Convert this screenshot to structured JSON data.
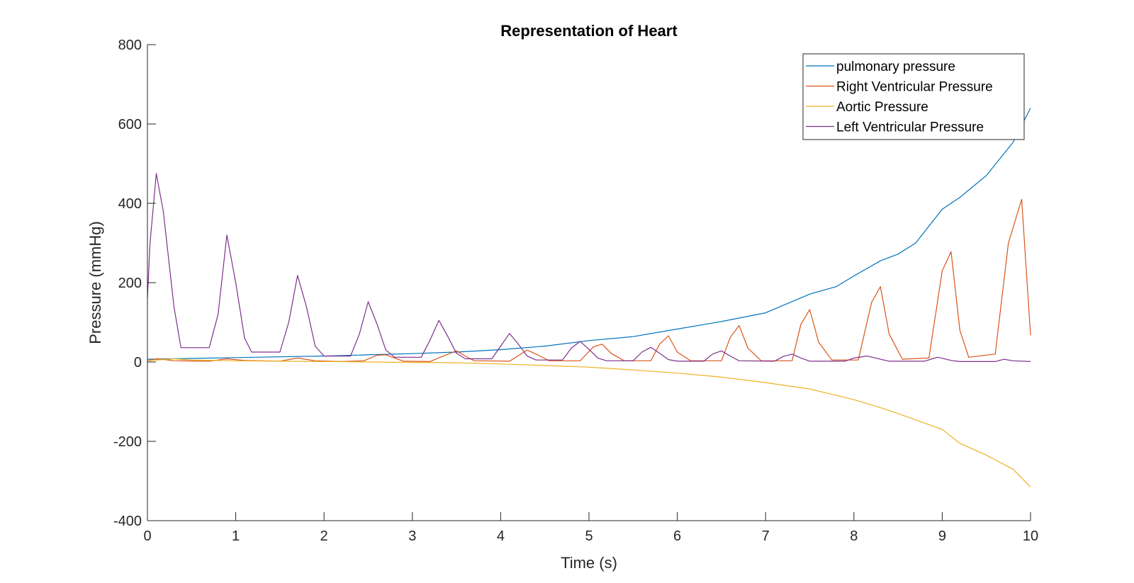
{
  "chart_data": {
    "type": "line",
    "title": "Representation of Heart",
    "xlabel": "Time (s)",
    "ylabel": "Pressure (mmHg)",
    "xlim": [
      0,
      10
    ],
    "ylim": [
      -400,
      800
    ],
    "xticks": [
      "0",
      "1",
      "2",
      "3",
      "4",
      "5",
      "6",
      "7",
      "8",
      "9",
      "10"
    ],
    "yticks": [
      "-400",
      "-200",
      "0",
      "200",
      "400",
      "600",
      "800"
    ],
    "grid": false,
    "legend_position": "top-right",
    "series": [
      {
        "name": "pulmonary pressure",
        "color": "#0072BD",
        "points": [
          [
            0,
            7
          ],
          [
            0.5,
            9
          ],
          [
            1,
            11
          ],
          [
            1.5,
            13
          ],
          [
            2,
            15
          ],
          [
            2.5,
            18
          ],
          [
            3,
            21
          ],
          [
            3.5,
            25
          ],
          [
            4,
            31
          ],
          [
            4.5,
            40
          ],
          [
            5,
            54
          ],
          [
            5.5,
            64
          ],
          [
            6,
            83
          ],
          [
            6.5,
            102
          ],
          [
            7,
            124
          ],
          [
            7.5,
            171
          ],
          [
            7.8,
            190
          ],
          [
            8,
            217
          ],
          [
            8.3,
            255
          ],
          [
            8.5,
            272
          ],
          [
            8.7,
            300
          ],
          [
            9,
            385
          ],
          [
            9.2,
            415
          ],
          [
            9.5,
            470
          ],
          [
            9.8,
            553
          ],
          [
            10,
            640
          ]
        ]
      },
      {
        "name": "Right Ventricular Pressure",
        "color": "#D95319",
        "points": [
          [
            0,
            3
          ],
          [
            0.1,
            8
          ],
          [
            0.2,
            6
          ],
          [
            0.3,
            3
          ],
          [
            0.7,
            2
          ],
          [
            0.9,
            8
          ],
          [
            1.1,
            4
          ],
          [
            1.5,
            2
          ],
          [
            1.7,
            10
          ],
          [
            1.9,
            3
          ],
          [
            2.2,
            1
          ],
          [
            2.45,
            3
          ],
          [
            2.6,
            17
          ],
          [
            2.7,
            18
          ],
          [
            2.9,
            2
          ],
          [
            3.2,
            1
          ],
          [
            3.35,
            15
          ],
          [
            3.5,
            28
          ],
          [
            3.6,
            15
          ],
          [
            3.7,
            3
          ],
          [
            4.1,
            2
          ],
          [
            4.3,
            30
          ],
          [
            4.4,
            20
          ],
          [
            4.55,
            3
          ],
          [
            4.9,
            3
          ],
          [
            5.05,
            38
          ],
          [
            5.15,
            45
          ],
          [
            5.25,
            22
          ],
          [
            5.4,
            3
          ],
          [
            5.7,
            3
          ],
          [
            5.8,
            45
          ],
          [
            5.9,
            66
          ],
          [
            6.0,
            25
          ],
          [
            6.15,
            3
          ],
          [
            6.5,
            3
          ],
          [
            6.6,
            62
          ],
          [
            6.7,
            92
          ],
          [
            6.8,
            35
          ],
          [
            6.95,
            3
          ],
          [
            7.3,
            3
          ],
          [
            7.4,
            95
          ],
          [
            7.5,
            132
          ],
          [
            7.6,
            50
          ],
          [
            7.75,
            5
          ],
          [
            8.05,
            5
          ],
          [
            8.2,
            150
          ],
          [
            8.3,
            190
          ],
          [
            8.4,
            70
          ],
          [
            8.55,
            7
          ],
          [
            8.85,
            10
          ],
          [
            9.0,
            230
          ],
          [
            9.1,
            278
          ],
          [
            9.2,
            80
          ],
          [
            9.3,
            12
          ],
          [
            9.6,
            20
          ],
          [
            9.75,
            300
          ],
          [
            9.9,
            410
          ],
          [
            10,
            68
          ]
        ]
      },
      {
        "name": "Aortic Pressure",
        "color": "#EDB120",
        "points": [
          [
            0,
            3
          ],
          [
            0.3,
            8
          ],
          [
            0.5,
            5
          ],
          [
            1,
            3
          ],
          [
            1.5,
            2
          ],
          [
            2,
            1
          ],
          [
            2.5,
            0
          ],
          [
            3,
            -1
          ],
          [
            3.5,
            -2
          ],
          [
            4,
            -5
          ],
          [
            4.5,
            -9
          ],
          [
            5,
            -13
          ],
          [
            5.5,
            -20
          ],
          [
            6,
            -28
          ],
          [
            6.5,
            -38
          ],
          [
            7,
            -52
          ],
          [
            7.5,
            -68
          ],
          [
            8,
            -95
          ],
          [
            8.3,
            -115
          ],
          [
            8.5,
            -130
          ],
          [
            9,
            -170
          ],
          [
            9.2,
            -205
          ],
          [
            9.5,
            -235
          ],
          [
            9.8,
            -270
          ],
          [
            10,
            -315
          ]
        ]
      },
      {
        "name": "Left Ventricular Pressure",
        "color": "#7E2F8E",
        "points": [
          [
            0,
            160
          ],
          [
            0.03,
            300
          ],
          [
            0.1,
            475
          ],
          [
            0.18,
            380
          ],
          [
            0.3,
            140
          ],
          [
            0.38,
            36
          ],
          [
            0.7,
            36
          ],
          [
            0.8,
            120
          ],
          [
            0.9,
            320
          ],
          [
            1.0,
            200
          ],
          [
            1.1,
            60
          ],
          [
            1.18,
            25
          ],
          [
            1.5,
            25
          ],
          [
            1.6,
            100
          ],
          [
            1.7,
            218
          ],
          [
            1.8,
            140
          ],
          [
            1.9,
            40
          ],
          [
            2.0,
            15
          ],
          [
            2.3,
            15
          ],
          [
            2.4,
            70
          ],
          [
            2.5,
            152
          ],
          [
            2.6,
            95
          ],
          [
            2.7,
            30
          ],
          [
            2.8,
            12
          ],
          [
            3.1,
            12
          ],
          [
            3.2,
            55
          ],
          [
            3.3,
            105
          ],
          [
            3.4,
            65
          ],
          [
            3.5,
            22
          ],
          [
            3.6,
            8
          ],
          [
            3.9,
            8
          ],
          [
            4.0,
            40
          ],
          [
            4.1,
            72
          ],
          [
            4.2,
            45
          ],
          [
            4.3,
            15
          ],
          [
            4.4,
            5
          ],
          [
            4.7,
            5
          ],
          [
            4.8,
            35
          ],
          [
            4.9,
            52
          ],
          [
            5.0,
            32
          ],
          [
            5.1,
            10
          ],
          [
            5.2,
            3
          ],
          [
            5.5,
            3
          ],
          [
            5.6,
            25
          ],
          [
            5.7,
            37
          ],
          [
            5.8,
            22
          ],
          [
            5.9,
            6
          ],
          [
            6.0,
            2
          ],
          [
            6.3,
            2
          ],
          [
            6.4,
            20
          ],
          [
            6.5,
            28
          ],
          [
            6.6,
            15
          ],
          [
            6.7,
            3
          ],
          [
            7.1,
            2
          ],
          [
            7.2,
            14
          ],
          [
            7.3,
            20
          ],
          [
            7.4,
            10
          ],
          [
            7.5,
            2
          ],
          [
            7.9,
            2
          ],
          [
            8.0,
            10
          ],
          [
            8.15,
            15
          ],
          [
            8.3,
            7
          ],
          [
            8.4,
            2
          ],
          [
            8.8,
            2
          ],
          [
            8.9,
            9
          ],
          [
            8.95,
            12
          ],
          [
            9.1,
            4
          ],
          [
            9.2,
            1
          ],
          [
            9.6,
            1
          ],
          [
            9.7,
            7
          ],
          [
            9.8,
            3
          ],
          [
            10,
            1
          ]
        ]
      }
    ]
  }
}
